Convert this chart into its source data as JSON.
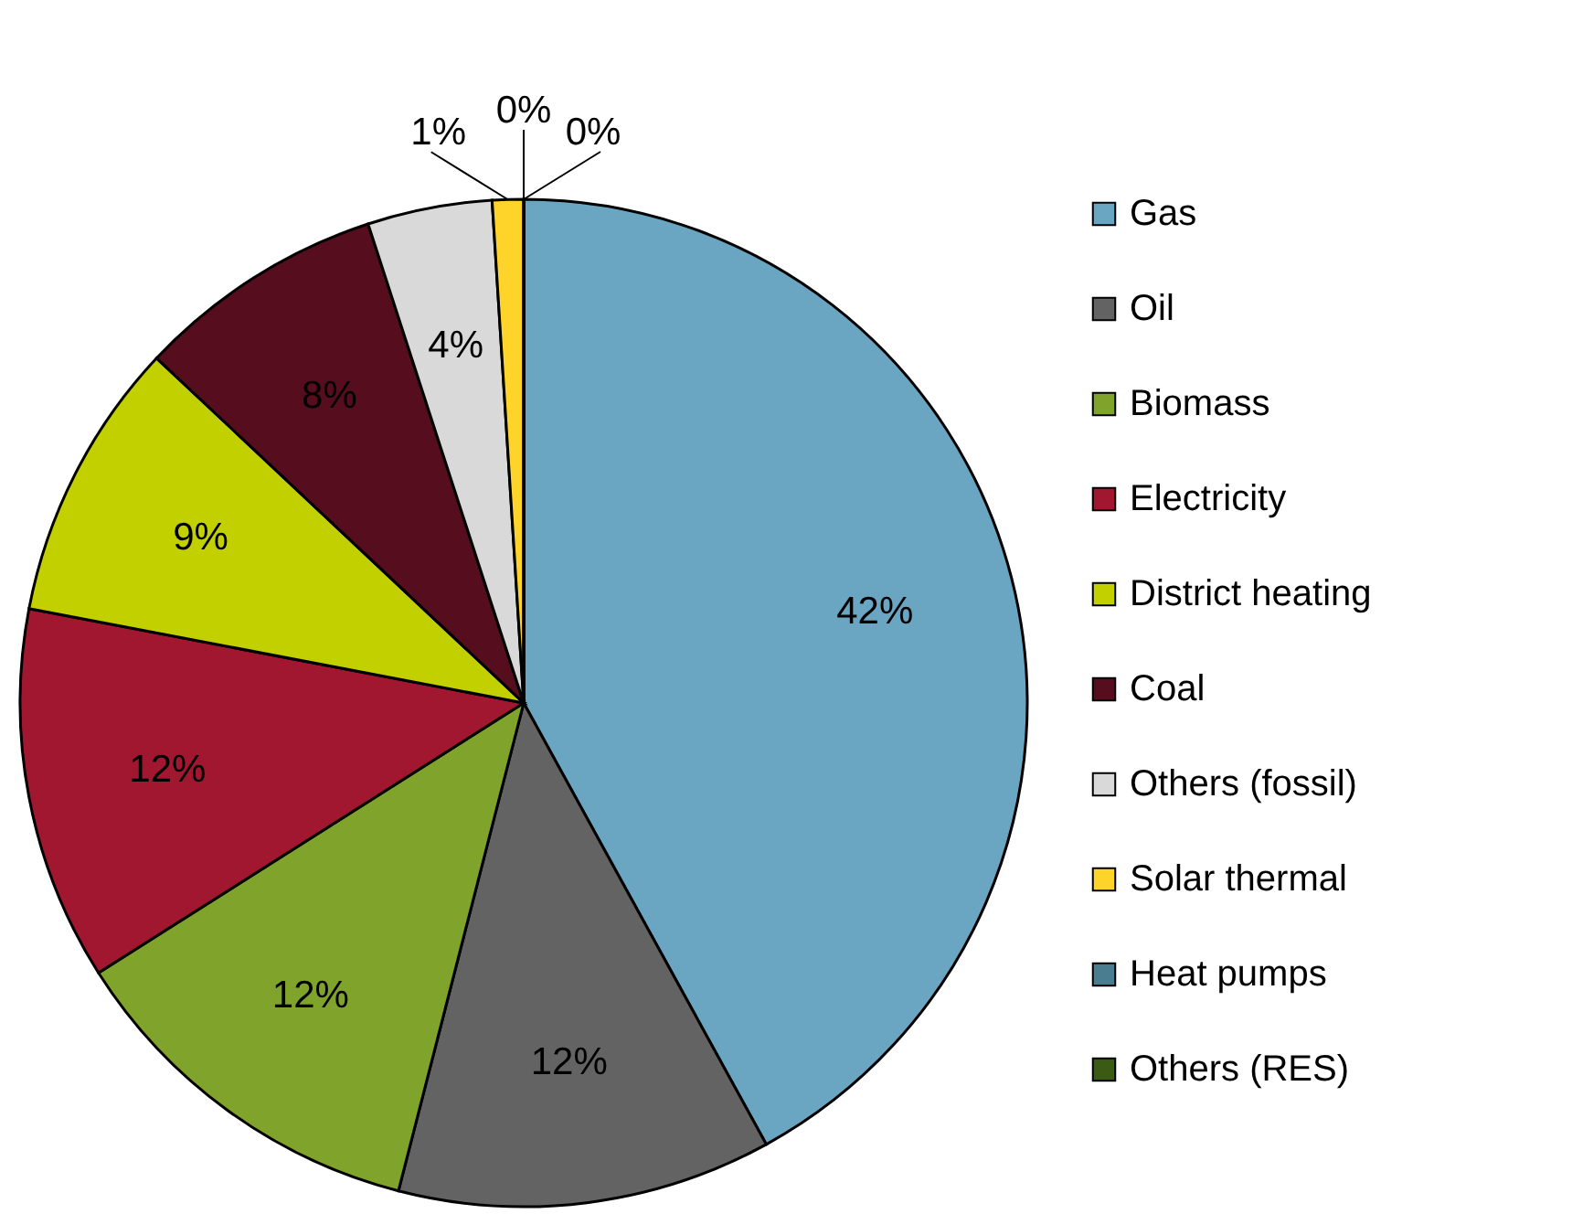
{
  "chart_data": {
    "type": "pie",
    "categories": [
      "Gas",
      "Oil",
      "Biomass",
      "Electricity",
      "District heating",
      "Coal",
      "Others (fossil)",
      "Solar thermal",
      "Heat pumps",
      "Others (RES)"
    ],
    "values": [
      42,
      12,
      12,
      12,
      9,
      8,
      4,
      1,
      0,
      0
    ],
    "value_labels": [
      "42%",
      "12%",
      "12%",
      "12%",
      "9%",
      "8%",
      "4%",
      "1%",
      "0%",
      "0%"
    ],
    "colors": [
      "#6aa5c2",
      "#636363",
      "#7fa32b",
      "#a0172f",
      "#c3d000",
      "#560d1e",
      "#d9d9d9",
      "#ffd42a",
      "#4a7d8f",
      "#3b5a14"
    ],
    "legend": "right"
  }
}
